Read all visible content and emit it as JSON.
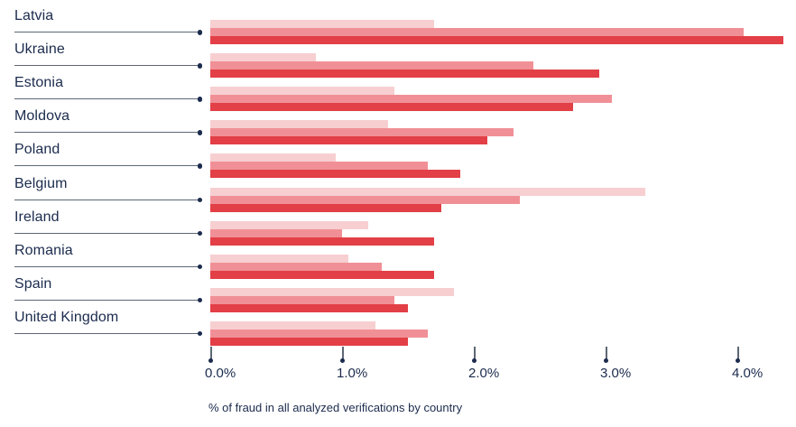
{
  "colors": {
    "text_navy": "#1b2b4d",
    "leader_line": "#5d6775",
    "bar_light": "#f7cfd1",
    "bar_medium": "#f09096",
    "bar_dark": "#e23f46",
    "background": "#ffffff"
  },
  "chart_data": {
    "type": "bar",
    "orientation": "horizontal",
    "title": "",
    "caption": "% of fraud in all analyzed verifications by country",
    "legend": "none",
    "grid": false,
    "xlim": [
      0,
      4.45
    ],
    "x_ticks": [
      "0.0%",
      "1.0%",
      "2.0%",
      "3.0%",
      "4.0%"
    ],
    "x_tick_values": [
      0,
      1,
      2,
      3,
      4
    ],
    "categories": [
      "Latvia",
      "Ukraine",
      "Estonia",
      "Moldova",
      "Poland",
      "Belgium",
      "Ireland",
      "Romania",
      "Spain",
      "United Kingdom"
    ],
    "series": [
      {
        "name": "series-1-light",
        "color": "#f7cfd1",
        "values": [
          1.7,
          0.8,
          1.4,
          1.35,
          0.95,
          3.3,
          1.2,
          1.05,
          1.85,
          1.25
        ]
      },
      {
        "name": "series-2-medium",
        "color": "#f09096",
        "values": [
          4.05,
          2.45,
          3.05,
          2.3,
          1.65,
          2.35,
          1.0,
          1.3,
          1.4,
          1.65
        ]
      },
      {
        "name": "series-3-dark",
        "color": "#e23f46",
        "values": [
          4.35,
          2.95,
          2.75,
          2.1,
          1.9,
          1.75,
          1.7,
          1.7,
          1.5,
          1.5
        ]
      }
    ]
  }
}
